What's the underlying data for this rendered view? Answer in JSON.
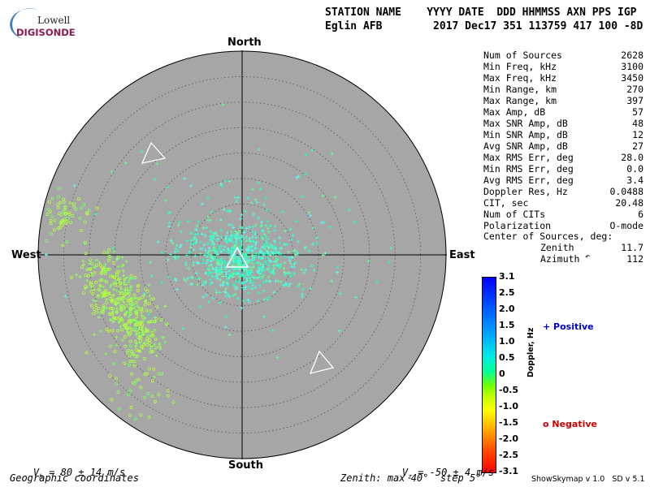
{
  "logo": {
    "line1": "Lowell",
    "line2": "DIGISONDE"
  },
  "header": {
    "columns": "STATION NAME    YYYY DATE  DDD HHMMSS AXN PPS IGP",
    "values": "Eglin AFB        2017 Dec17 351 113759 417 100 -8D"
  },
  "compass": {
    "north": "North",
    "south": "South",
    "east": "East",
    "west": "West"
  },
  "stats": [
    {
      "label": "Num of Sources",
      "value": "2628"
    },
    {
      "label": "Min Freq, kHz",
      "value": "3100"
    },
    {
      "label": "Max Freq, kHz",
      "value": "3450"
    },
    {
      "label": "Min Range, km",
      "value": "270"
    },
    {
      "label": "Max Range, km",
      "value": "397"
    },
    {
      "label": "Max Amp, dB",
      "value": "57"
    },
    {
      "label": "Max SNR Amp, dB",
      "value": "48"
    },
    {
      "label": "Min SNR Amp, dB",
      "value": "12"
    },
    {
      "label": "Avg SNR Amp, dB",
      "value": "27"
    },
    {
      "label": "Max RMS Err, deg",
      "value": "28.0"
    },
    {
      "label": "Min RMS Err, deg",
      "value": "0.0"
    },
    {
      "label": "Avg RMS Err, deg",
      "value": "3.4"
    },
    {
      "label": "Doppler Res, Hz",
      "value": "0.0488"
    },
    {
      "label": "CIT, sec",
      "value": "20.48"
    },
    {
      "label": "Num of CITs",
      "value": "6"
    },
    {
      "label": "Polarization",
      "value": "O-mode"
    }
  ],
  "center": {
    "title": "Center of Sources, deg:",
    "zenith_label": "Zenith",
    "zenith_value": "11.7",
    "azimuth_label": "Azimuth",
    "azimuth_value": "112"
  },
  "colorbar": {
    "ticks": [
      "3.1",
      "2.5",
      "2.0",
      "1.5",
      "1.0",
      "0.5",
      "0",
      "-0.5",
      "-1.0",
      "-1.5",
      "-2.0",
      "-2.5",
      "-3.1"
    ],
    "axis_label": "Doppler, Hz",
    "positive": "+ Positive",
    "negative": "o Negative",
    "colors": {
      "positive": "#0000cc",
      "negative": "#cc0000"
    }
  },
  "footer": {
    "vh_prefix": "V",
    "vh_sub": "h",
    "vh_rest": " = 80 ± 14 m/s",
    "vz_prefix": "V",
    "vz_sub": "z",
    "vz_rest": " = -50 ± 4 m/s",
    "coords": "Geographic coordinates",
    "zenith_info": "Zenith: max 40°  step 5°",
    "version": "ShowSkymap v 1.0   SD v 5.1"
  },
  "plot": {
    "zenith_max_deg": 40,
    "step_deg": 5,
    "background": "#a6a6a6"
  }
}
